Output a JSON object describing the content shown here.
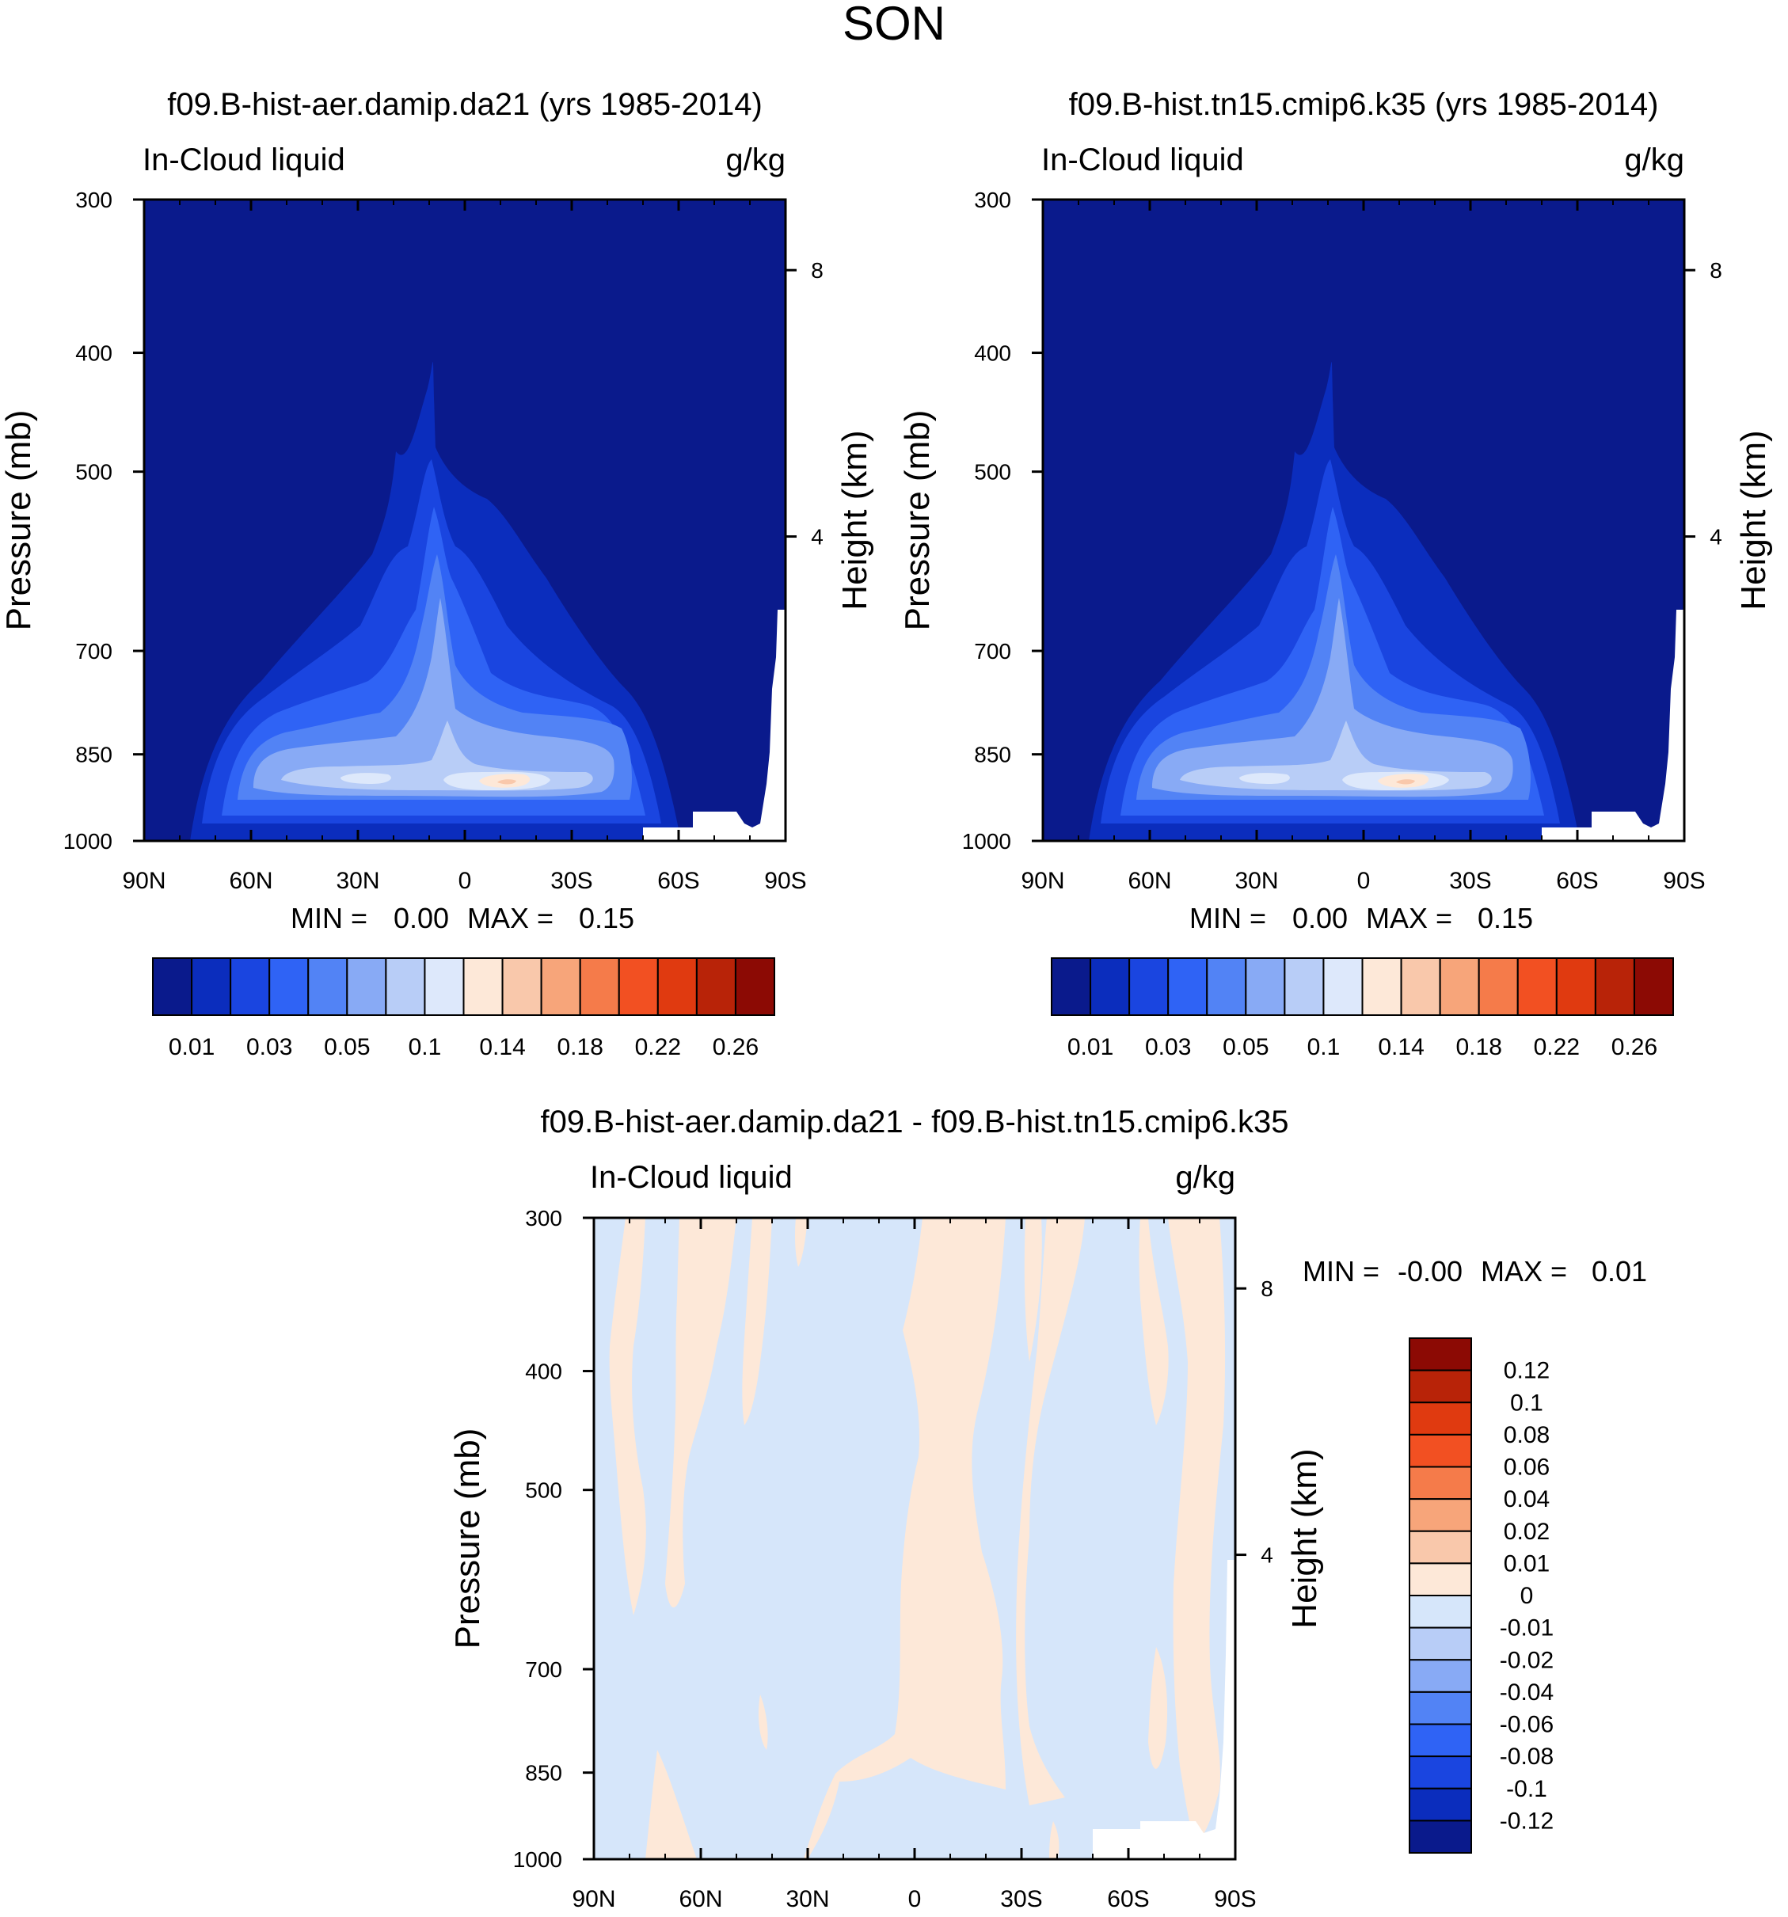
{
  "figure_title": "SON",
  "chart_data": [
    {
      "type": "heatmap",
      "title": "f09.B-hist-aer.damip.da21 (yrs 1985-2014)",
      "variable": "In-Cloud liquid",
      "units": "g/kg",
      "ylabel": "Pressure (mb)",
      "y2label": "Height (km)",
      "x_ticks": [
        "90N",
        "60N",
        "30N",
        "0",
        "30S",
        "60S",
        "90S"
      ],
      "y_ticks": [
        "300",
        "400",
        "500",
        "700",
        "850",
        "1000"
      ],
      "y2_ticks": [
        "8",
        "4"
      ],
      "ylim": [
        300,
        1000
      ],
      "stats": {
        "min_label": "MIN =",
        "min": "0.00",
        "max_label": "MAX =",
        "max": "0.15"
      },
      "colorbar": {
        "orientation": "horizontal",
        "labels": [
          "0.01",
          "0.03",
          "0.05",
          "0.1",
          "0.14",
          "0.18",
          "0.22",
          "0.26"
        ],
        "colors": [
          "#0a1a8c",
          "#0b2dbd",
          "#1a45e0",
          "#2f63f5",
          "#5283f5",
          "#88aaf5",
          "#b8cdf7",
          "#dde8fb",
          "#fde8d8",
          "#f9c8ab",
          "#f7a57a",
          "#f57b4a",
          "#f25022",
          "#e03a10",
          "#b82308",
          "#8c0a04"
        ]
      }
    },
    {
      "type": "heatmap",
      "title": "f09.B-hist.tn15.cmip6.k35 (yrs 1985-2014)",
      "variable": "In-Cloud liquid",
      "units": "g/kg",
      "ylabel": "Pressure (mb)",
      "y2label": "Height (km)",
      "x_ticks": [
        "90N",
        "60N",
        "30N",
        "0",
        "30S",
        "60S",
        "90S"
      ],
      "y_ticks": [
        "300",
        "400",
        "500",
        "700",
        "850",
        "1000"
      ],
      "y2_ticks": [
        "8",
        "4"
      ],
      "ylim": [
        300,
        1000
      ],
      "stats": {
        "min_label": "MIN =",
        "min": "0.00",
        "max_label": "MAX =",
        "max": "0.15"
      },
      "colorbar": {
        "orientation": "horizontal",
        "labels": [
          "0.01",
          "0.03",
          "0.05",
          "0.1",
          "0.14",
          "0.18",
          "0.22",
          "0.26"
        ],
        "colors": [
          "#0a1a8c",
          "#0b2dbd",
          "#1a45e0",
          "#2f63f5",
          "#5283f5",
          "#88aaf5",
          "#b8cdf7",
          "#dde8fb",
          "#fde8d8",
          "#f9c8ab",
          "#f7a57a",
          "#f57b4a",
          "#f25022",
          "#e03a10",
          "#b82308",
          "#8c0a04"
        ]
      }
    },
    {
      "type": "heatmap",
      "title": "f09.B-hist-aer.damip.da21 - f09.B-hist.tn15.cmip6.k35",
      "variable": "In-Cloud liquid",
      "units": "g/kg",
      "ylabel": "Pressure (mb)",
      "y2label": "Height (km)",
      "x_ticks": [
        "90N",
        "60N",
        "30N",
        "0",
        "30S",
        "60S",
        "90S"
      ],
      "y_ticks": [
        "300",
        "400",
        "500",
        "700",
        "850",
        "1000"
      ],
      "y2_ticks": [
        "8",
        "4"
      ],
      "ylim": [
        300,
        1000
      ],
      "stats": {
        "min_label": "MIN =",
        "min": "-0.00",
        "max_label": "MAX =",
        "max": "0.01"
      },
      "colorbar": {
        "orientation": "vertical",
        "labels": [
          "0.12",
          "0.1",
          "0.08",
          "0.06",
          "0.04",
          "0.02",
          "0.01",
          "0",
          "-0.01",
          "-0.02",
          "-0.04",
          "-0.06",
          "-0.08",
          "-0.1",
          "-0.12"
        ],
        "colors": [
          "#8c0a04",
          "#b82308",
          "#e03a10",
          "#f25022",
          "#f57b4a",
          "#f7a57a",
          "#f9c8ab",
          "#fde8d8",
          "#d6e6fa",
          "#b8cdf7",
          "#88aaf5",
          "#5283f5",
          "#2f63f5",
          "#1a45e0",
          "#0b2dbd",
          "#0a1a8c"
        ]
      }
    }
  ]
}
